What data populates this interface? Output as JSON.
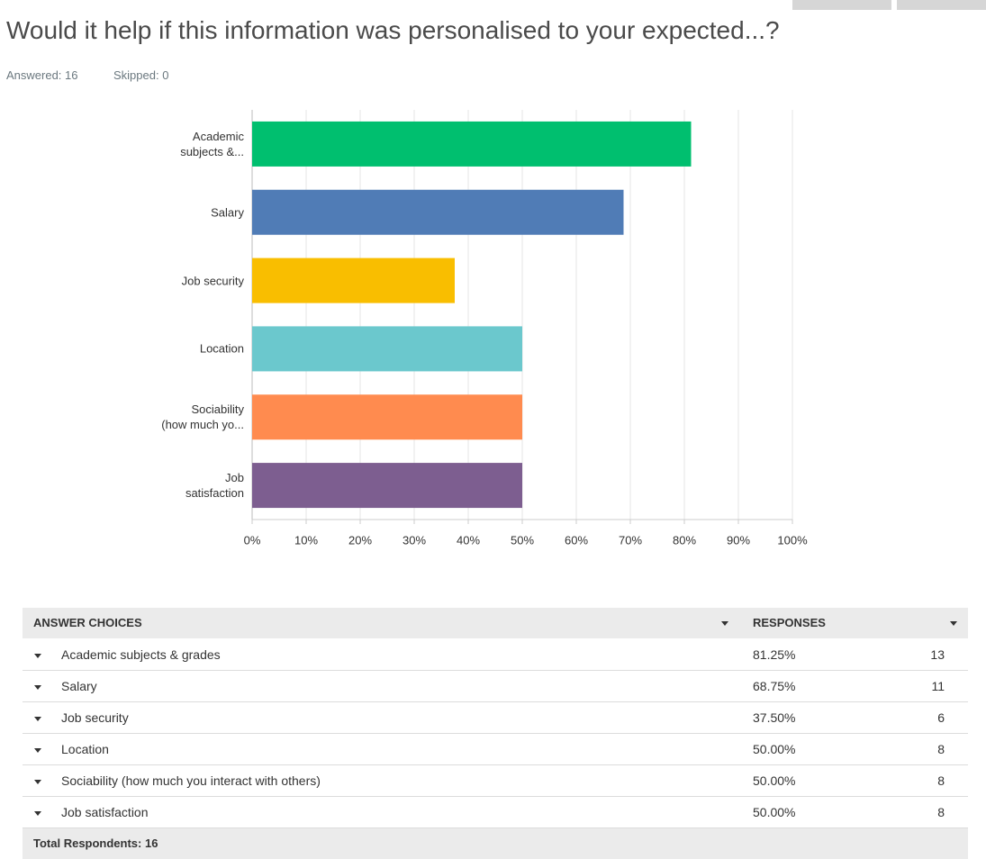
{
  "header": {
    "title": "Would it help if this information was personalised to your expected...?",
    "answered": "Answered: 16",
    "skipped": "Skipped: 0"
  },
  "chart_data": {
    "type": "bar",
    "orientation": "horizontal",
    "categories": [
      "Academic\nsubjects &...",
      "Salary",
      "Job security",
      "Location",
      "Sociability\n(how much yo...",
      "Job\nsatisfaction"
    ],
    "values": [
      81.25,
      68.75,
      37.5,
      50,
      50,
      50
    ],
    "colors": [
      "#00bf6f",
      "#507cb6",
      "#f9be00",
      "#6bc8cd",
      "#ff8b4f",
      "#7d5e90"
    ],
    "xlim": [
      0,
      100
    ],
    "xticks": [
      {
        "value": 0,
        "label": "0%"
      },
      {
        "value": 10,
        "label": "10%"
      },
      {
        "value": 20,
        "label": "20%"
      },
      {
        "value": 30,
        "label": "30%"
      },
      {
        "value": 40,
        "label": "40%"
      },
      {
        "value": 50,
        "label": "50%"
      },
      {
        "value": 60,
        "label": "60%"
      },
      {
        "value": 70,
        "label": "70%"
      },
      {
        "value": 80,
        "label": "80%"
      },
      {
        "value": 90,
        "label": "90%"
      },
      {
        "value": 100,
        "label": "100%"
      }
    ],
    "grid": true
  },
  "table": {
    "columns": [
      "ANSWER CHOICES",
      "RESPONSES"
    ],
    "rows": [
      [
        "Academic subjects & grades",
        "81.25%",
        13
      ],
      [
        "Salary",
        "68.75%",
        11
      ],
      [
        "Job security",
        "37.50%",
        6
      ],
      [
        "Location",
        "50.00%",
        8
      ],
      [
        "Sociability (how much you interact with others)",
        "50.00%",
        8
      ],
      [
        "Job satisfaction",
        "50.00%",
        8
      ]
    ],
    "total": "Total Respondents: 16"
  }
}
